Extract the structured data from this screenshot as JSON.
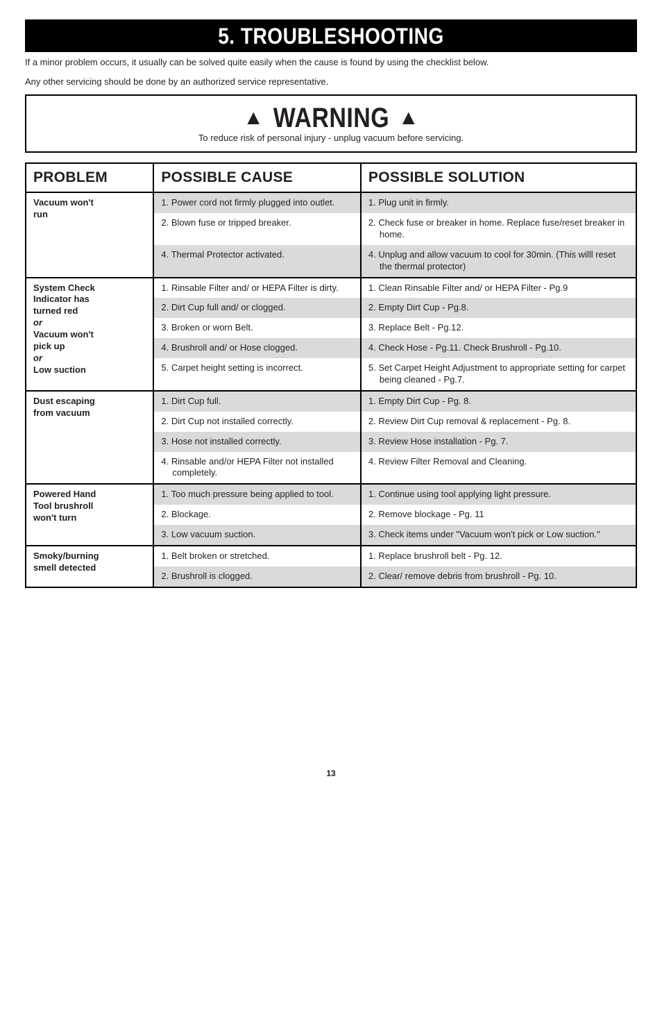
{
  "section_title": "5. TROUBLESHOOTING",
  "intro": [
    "If a minor problem occurs, it usually can be solved quite easily when the cause is found by using the checklist below.",
    "Any other servicing should be done by an authorized service representative."
  ],
  "warning": {
    "title": "WARNING",
    "sub": "To reduce risk of personal injury - unplug vacuum before servicing."
  },
  "headers": {
    "c1": "PROBLEM",
    "c2": "POSSIBLE CAUSE",
    "c3": "POSSIBLE SOLUTION"
  },
  "groups": [
    {
      "problem_lines": [
        {
          "text": "Vacuum won't",
          "bold": true
        },
        {
          "text": "run",
          "bold": true
        }
      ],
      "rows": [
        {
          "cause": "1. Power cord not firmly plugged into outlet.",
          "solution": "1. Plug unit in firmly.",
          "shade": true
        },
        {
          "cause": "2. Blown fuse or tripped breaker.",
          "solution": "2. Check fuse or breaker in home. Replace fuse/reset breaker in home.",
          "shade": false
        },
        {
          "cause": "4. Thermal Protector activated.",
          "solution": "4. Unplug and allow vacuum to cool for 30min. (This willl reset the thermal protector)",
          "shade": true
        }
      ]
    },
    {
      "problem_lines": [
        {
          "text": "System Check",
          "bold": true
        },
        {
          "text": "Indicator has",
          "bold": true
        },
        {
          "text": "turned red",
          "bold": true
        },
        {
          "text": "or",
          "em": true
        },
        {
          "text": "Vacuum won't",
          "bold": true
        },
        {
          "text": "pick up",
          "bold": true
        },
        {
          "text": "or",
          "em": true
        },
        {
          "text": "Low suction",
          "bold": true
        }
      ],
      "rows": [
        {
          "cause": "1. Rinsable Filter and/ or HEPA Filter is dirty.",
          "solution": "1. Clean Rinsable Filter and/ or HEPA Filter - Pg.9",
          "shade": false
        },
        {
          "cause": "2. Dirt Cup full and/ or clogged.",
          "solution": "2. Empty Dirt Cup - Pg.8.",
          "shade": true
        },
        {
          "cause": "3. Broken or worn Belt.",
          "solution": "3. Replace Belt - Pg.12.",
          "shade": false
        },
        {
          "cause": "4. Brushroll and/ or Hose clogged.",
          "solution": "4. Check Hose - Pg.11. Check Brushroll - Pg.10.",
          "shade": true
        },
        {
          "cause": "5. Carpet height setting is incorrect.",
          "solution": "5. Set Carpet Height Adjustment to appropriate setting for carpet being cleaned - Pg.7.",
          "shade": false
        }
      ]
    },
    {
      "problem_lines": [
        {
          "text": "Dust escaping",
          "bold": true
        },
        {
          "text": "from vacuum",
          "bold": true
        }
      ],
      "rows": [
        {
          "cause": "1. Dirt Cup full.",
          "solution": "1. Empty Dirt Cup - Pg. 8.",
          "shade": true
        },
        {
          "cause": "2. Dirt Cup not installed correctly.",
          "solution": "2. Review Dirt Cup removal & replacement - Pg. 8.",
          "shade": false
        },
        {
          "cause": "3. Hose not installed correctly.",
          "solution": "3. Review Hose installation - Pg. 7.",
          "shade": true
        },
        {
          "cause": "4. Rinsable and/or HEPA Filter not installed completely.",
          "solution": "4. Review Filter Removal and Cleaning.",
          "shade": false
        }
      ]
    },
    {
      "problem_lines": [
        {
          "text": "Powered Hand",
          "bold": true
        },
        {
          "text": "Tool brushroll",
          "bold": true
        },
        {
          "text": "won't turn",
          "bold": true
        }
      ],
      "rows": [
        {
          "cause": "1. Too much pressure being applied to tool.",
          "solution": "1. Continue using tool applying light pressure.",
          "shade": true
        },
        {
          "cause": "2. Blockage.",
          "solution": "2. Remove blockage - Pg. 11",
          "shade": false
        },
        {
          "cause": "3. Low vacuum suction.",
          "solution": "3. Check items under \"Vacuum won't pick or Low suction.\"",
          "shade": true
        }
      ]
    },
    {
      "problem_lines": [
        {
          "text": "Smoky/burning",
          "bold": true
        },
        {
          "text": "smell detected",
          "bold": true
        }
      ],
      "rows": [
        {
          "cause": "1. Belt broken or stretched.",
          "solution": "1. Replace brushroll belt - Pg. 12.",
          "shade": false
        },
        {
          "cause": "2. Brushroll is clogged.",
          "solution": "2. Clear/ remove debris from brushroll - Pg. 10.",
          "shade": true
        }
      ]
    }
  ],
  "page_number": "13"
}
